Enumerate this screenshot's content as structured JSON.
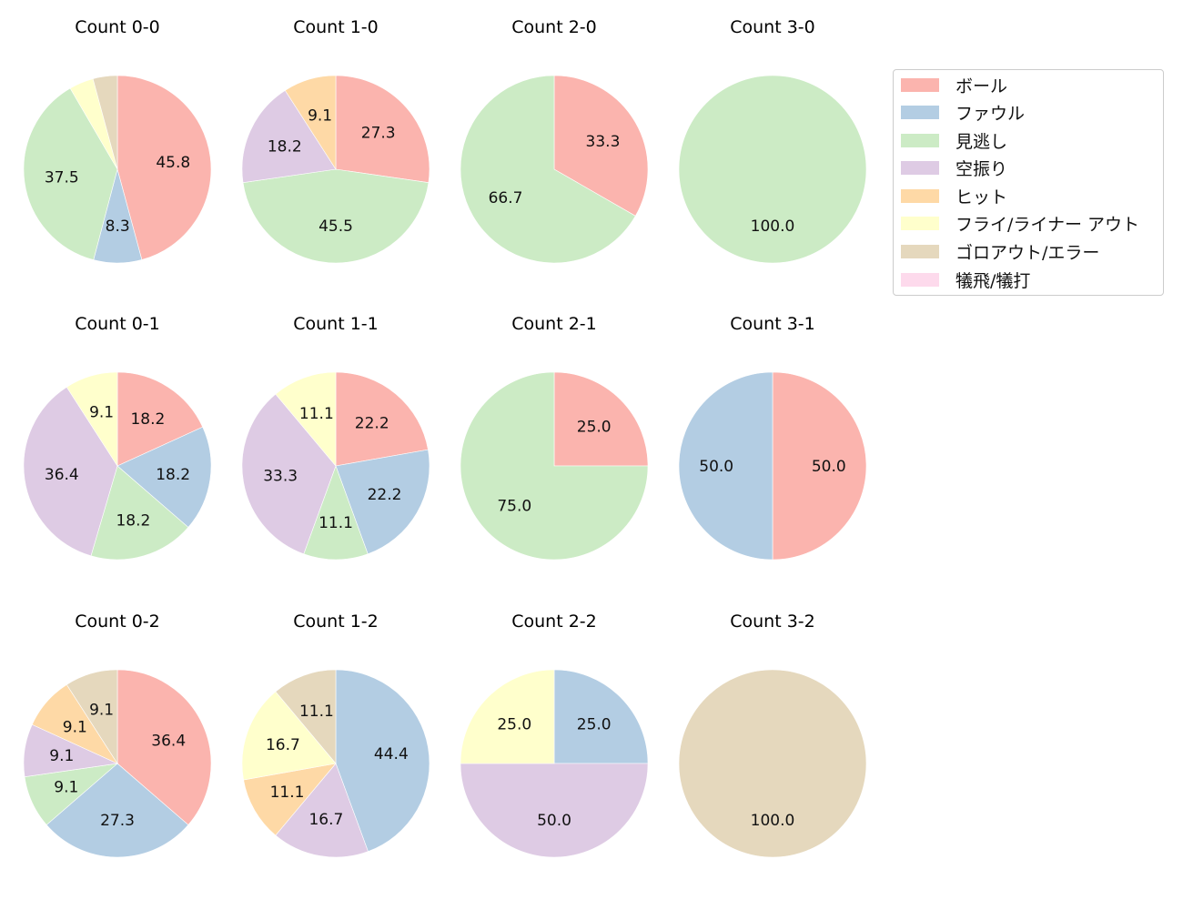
{
  "legend": {
    "items": [
      {
        "label": "ボール",
        "color": "#fbb4ae"
      },
      {
        "label": "ファウル",
        "color": "#b3cde3"
      },
      {
        "label": "見逃し",
        "color": "#ccebc5"
      },
      {
        "label": "空振り",
        "color": "#decbe4"
      },
      {
        "label": "ヒット",
        "color": "#fed9a6"
      },
      {
        "label": "フライ/ライナー アウト",
        "color": "#ffffcc"
      },
      {
        "label": "ゴロアウト/エラー",
        "color": "#e5d8bd"
      },
      {
        "label": "犠飛/犠打",
        "color": "#fddaec"
      }
    ]
  },
  "chart_data": {
    "type": "pie",
    "categories": [
      "ボール",
      "ファウル",
      "見逃し",
      "空振り",
      "ヒット",
      "フライ/ライナー アウト",
      "ゴロアウト/エラー",
      "犠飛/犠打"
    ],
    "colors": [
      "#fbb4ae",
      "#b3cde3",
      "#ccebc5",
      "#decbe4",
      "#fed9a6",
      "#ffffcc",
      "#e5d8bd",
      "#fddaec"
    ],
    "start_angle": 90,
    "direction": "clockwise",
    "label_threshold_note": "slices under ~5% unlabeled",
    "pies": [
      {
        "title": "Count 0-0",
        "row": 0,
        "col": 0,
        "values": [
          45.8,
          8.3,
          37.5,
          0,
          0,
          4.2,
          4.2,
          0
        ],
        "labels": [
          "45.8",
          "8.3",
          "37.5",
          "",
          "",
          "",
          "",
          ""
        ]
      },
      {
        "title": "Count 1-0",
        "row": 0,
        "col": 1,
        "values": [
          27.3,
          0,
          45.5,
          18.2,
          9.1,
          0,
          0,
          0
        ],
        "labels": [
          "27.3",
          "",
          "45.5",
          "18.2",
          "9.1",
          "",
          "",
          ""
        ]
      },
      {
        "title": "Count 2-0",
        "row": 0,
        "col": 2,
        "values": [
          33.3,
          0,
          66.7,
          0,
          0,
          0,
          0,
          0
        ],
        "labels": [
          "33.3",
          "",
          "66.7",
          "",
          "",
          "",
          "",
          ""
        ]
      },
      {
        "title": "Count 3-0",
        "row": 0,
        "col": 3,
        "values": [
          0,
          0,
          100.0,
          0,
          0,
          0,
          0,
          0
        ],
        "labels": [
          "",
          "",
          "100.0",
          "",
          "",
          "",
          "",
          ""
        ]
      },
      {
        "title": "Count 0-1",
        "row": 1,
        "col": 0,
        "values": [
          18.2,
          18.2,
          18.2,
          36.4,
          0,
          9.1,
          0,
          0
        ],
        "labels": [
          "18.2",
          "18.2",
          "18.2",
          "36.4",
          "",
          "9.1",
          "",
          ""
        ]
      },
      {
        "title": "Count 1-1",
        "row": 1,
        "col": 1,
        "values": [
          22.2,
          22.2,
          11.1,
          33.3,
          0,
          11.1,
          0,
          0
        ],
        "labels": [
          "22.2",
          "22.2",
          "11.1",
          "33.3",
          "",
          "11.1",
          "",
          ""
        ]
      },
      {
        "title": "Count 2-1",
        "row": 1,
        "col": 2,
        "values": [
          25.0,
          0,
          75.0,
          0,
          0,
          0,
          0,
          0
        ],
        "labels": [
          "25.0",
          "",
          "75.0",
          "",
          "",
          "",
          "",
          ""
        ]
      },
      {
        "title": "Count 3-1",
        "row": 1,
        "col": 3,
        "values": [
          50.0,
          50.0,
          0,
          0,
          0,
          0,
          0,
          0
        ],
        "labels": [
          "50.0",
          "50.0",
          "",
          "",
          "",
          "",
          "",
          ""
        ]
      },
      {
        "title": "Count 0-2",
        "row": 2,
        "col": 0,
        "values": [
          36.4,
          27.3,
          9.1,
          9.1,
          9.1,
          0,
          9.1,
          0
        ],
        "labels": [
          "36.4",
          "27.3",
          "9.1",
          "9.1",
          "9.1",
          "",
          "9.1",
          ""
        ]
      },
      {
        "title": "Count 1-2",
        "row": 2,
        "col": 1,
        "values": [
          0,
          44.4,
          0,
          16.7,
          11.1,
          16.7,
          11.1,
          0
        ],
        "labels": [
          "",
          "44.4",
          "",
          "16.7",
          "11.1",
          "16.7",
          "11.1",
          ""
        ]
      },
      {
        "title": "Count 2-2",
        "row": 2,
        "col": 2,
        "values": [
          0,
          25.0,
          0,
          50.0,
          0,
          25.0,
          0,
          0
        ],
        "labels": [
          "",
          "25.0",
          "",
          "50.0",
          "",
          "25.0",
          "",
          ""
        ]
      },
      {
        "title": "Count 3-2",
        "row": 2,
        "col": 3,
        "values": [
          0,
          0,
          0,
          0,
          0,
          0,
          100.0,
          0
        ],
        "labels": [
          "",
          "",
          "",
          "",
          "",
          "",
          "100.0",
          ""
        ]
      }
    ]
  }
}
